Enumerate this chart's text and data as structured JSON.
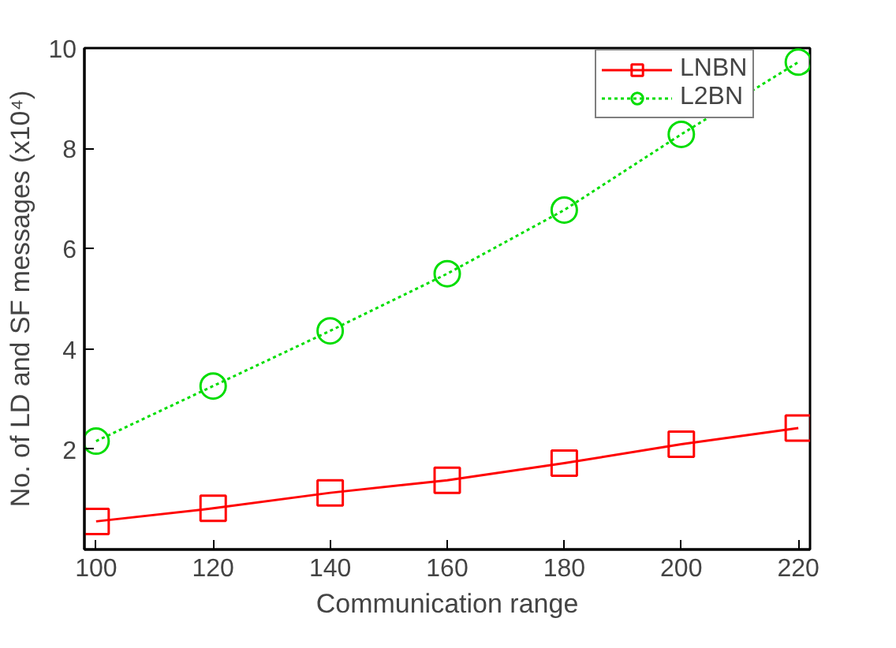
{
  "chart_data": {
    "type": "line",
    "xlabel": "Communication range",
    "ylabel": "No. of LD and SF messages (x10⁴)",
    "x": [
      100,
      120,
      140,
      160,
      180,
      200,
      220
    ],
    "xlim": [
      98,
      222
    ],
    "ylim": [
      0,
      10
    ],
    "xticks": [
      100,
      120,
      140,
      160,
      180,
      200,
      220
    ],
    "yticks": [
      2,
      4,
      6,
      8,
      10
    ],
    "grid": false,
    "legend": "top right",
    "series": [
      {
        "name": "LNBN",
        "color": "#ff0000",
        "marker": "square",
        "line_style": "solid",
        "values": [
          0.56,
          0.82,
          1.13,
          1.38,
          1.72,
          2.1,
          2.42
        ]
      },
      {
        "name": "L2BN",
        "color": "#00dd00",
        "marker": "circle",
        "line_style": "dotted",
        "values": [
          2.16,
          3.26,
          4.36,
          5.5,
          6.77,
          8.28,
          9.72
        ]
      }
    ]
  }
}
